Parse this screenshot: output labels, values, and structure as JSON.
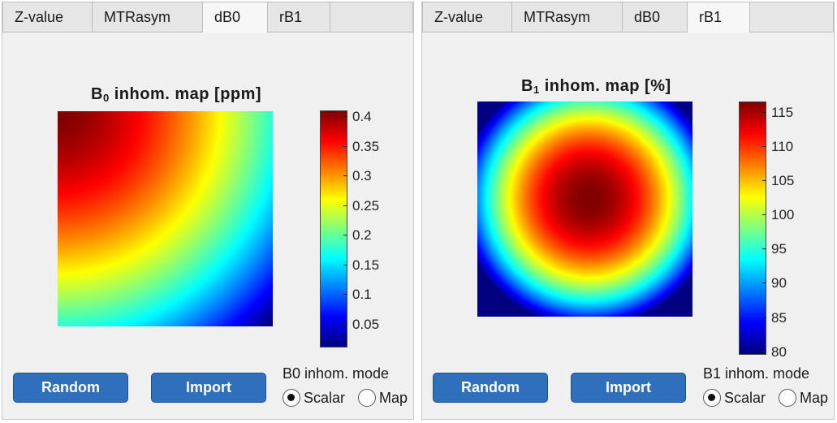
{
  "panels": [
    {
      "tabs": [
        {
          "label": "Z-value",
          "active": false
        },
        {
          "label": "MTRasym",
          "active": false
        },
        {
          "label": "dB0",
          "active": true
        },
        {
          "label": "rB1",
          "active": false
        }
      ],
      "title": {
        "main": "B",
        "sub": "0",
        "rest": " inhom.  map  [ppm]"
      },
      "colorbar": {
        "min": 0.01,
        "max": 0.41,
        "ticks": [
          "0.4",
          "0.35",
          "0.3",
          "0.25",
          "0.2",
          "0.15",
          "0.1",
          "0.05"
        ]
      },
      "buttons": {
        "random": "Random",
        "import": "Import"
      },
      "mode": {
        "label": "B0 inhom. mode",
        "options": [
          "Scalar",
          "Map"
        ],
        "selected": "Scalar"
      }
    },
    {
      "tabs": [
        {
          "label": "Z-value",
          "active": false
        },
        {
          "label": "MTRasym",
          "active": false
        },
        {
          "label": "dB0",
          "active": false
        },
        {
          "label": "rB1",
          "active": true
        }
      ],
      "title": {
        "main": "B",
        "sub": "1",
        "rest": "  inhom.  map  [%]"
      },
      "colorbar": {
        "min": 79.5,
        "max": 116.5,
        "ticks": [
          "115",
          "110",
          "105",
          "100",
          "95",
          "90",
          "85",
          "80"
        ]
      },
      "buttons": {
        "random": "Random",
        "import": "Import"
      },
      "mode": {
        "label": "B1 inhom. mode",
        "options": [
          "Scalar",
          "Map"
        ],
        "selected": "Scalar"
      }
    }
  ],
  "colormap": "jet",
  "colors": {
    "button": "#2f6fbb",
    "panel": "#f0f0f0"
  }
}
